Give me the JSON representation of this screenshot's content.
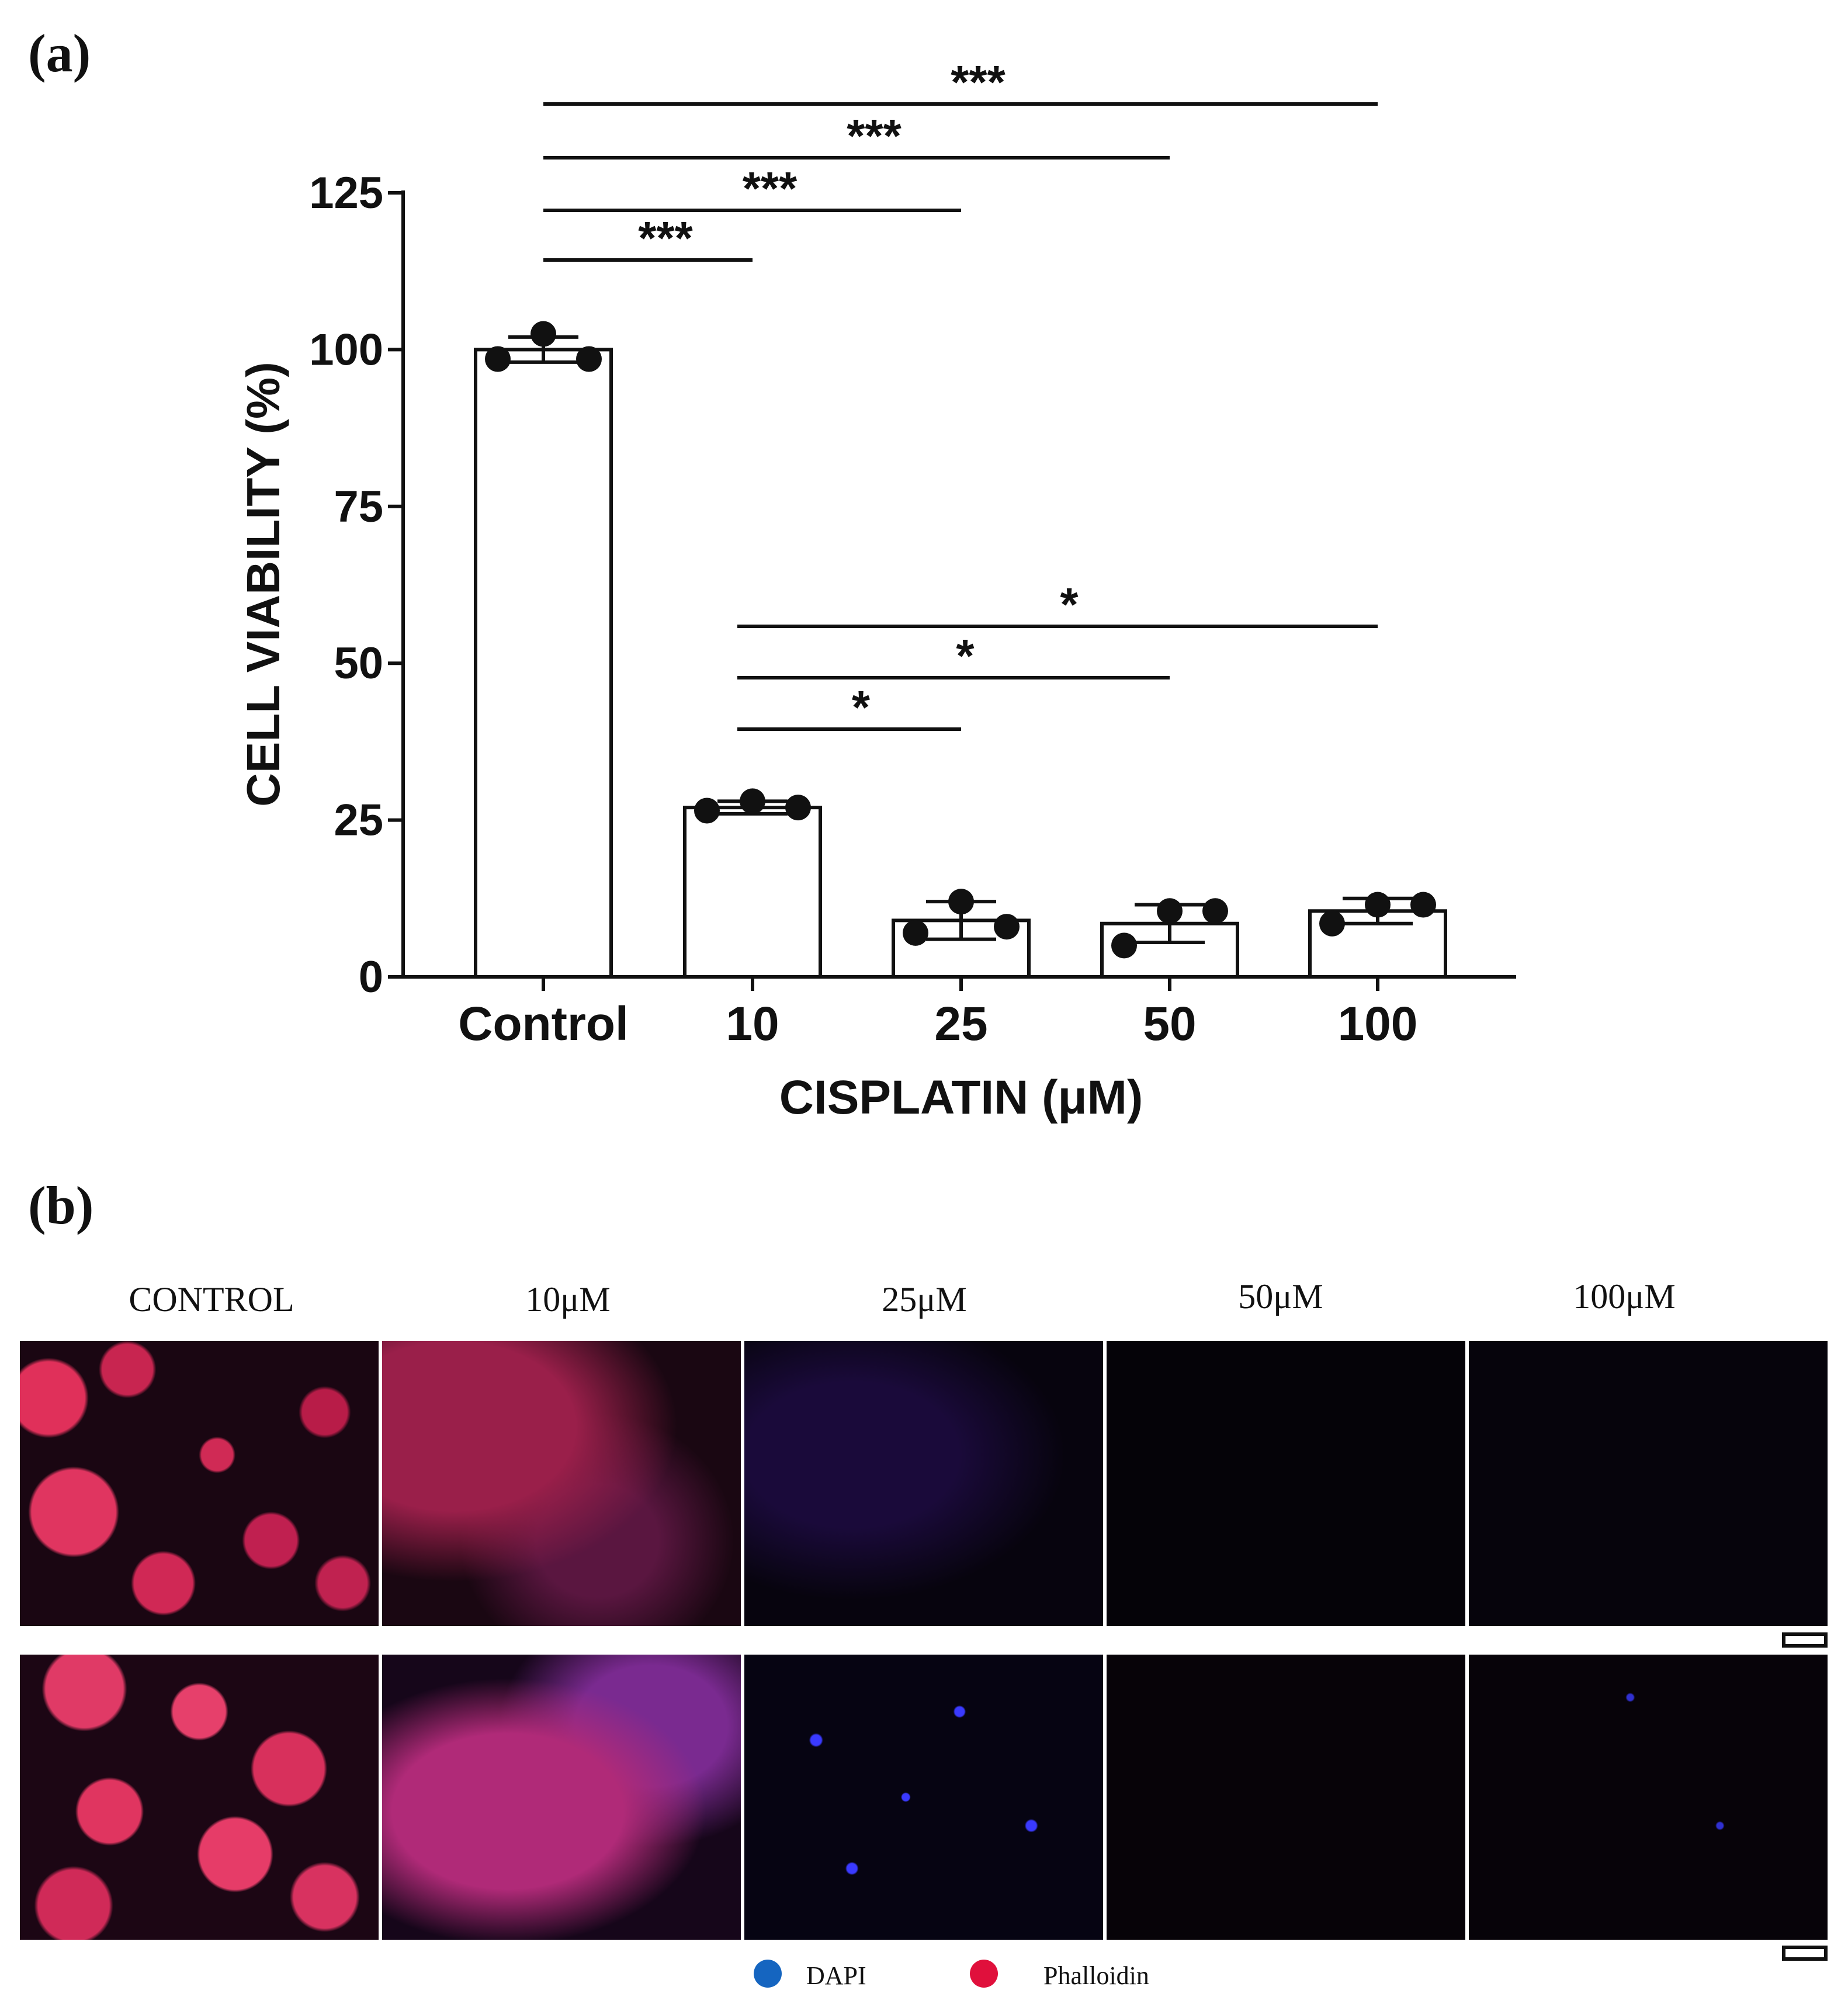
{
  "panel_a": {
    "letter": "(a)"
  },
  "panel_b": {
    "letter": "(b)",
    "columns": [
      "CONTROL",
      "10μM",
      "25μM",
      "50μM",
      "100μM"
    ],
    "legend": [
      {
        "label": "DAPI",
        "color": "#1565c0"
      },
      {
        "label": "Phalloidin",
        "color": "#e0103c"
      }
    ]
  },
  "chart_data": {
    "type": "bar",
    "title": "",
    "xlabel": "CISPLATIN (μM)",
    "ylabel": "CELL VIABILITY (%)",
    "categories": [
      "Control",
      "10",
      "25",
      "50",
      "100"
    ],
    "values": [
      100,
      27,
      9,
      8.5,
      10.5
    ],
    "error": [
      2,
      1,
      3,
      3,
      2
    ],
    "points": [
      [
        98.5,
        102.5,
        98.5
      ],
      [
        26.5,
        28,
        27
      ],
      [
        7,
        12,
        8
      ],
      [
        5,
        10.5,
        10.5
      ],
      [
        8.5,
        11.5,
        11.5
      ]
    ],
    "ylim": [
      0,
      125
    ],
    "yticks": [
      0,
      25,
      50,
      75,
      100,
      125
    ],
    "significance": [
      {
        "from": 0,
        "to": 4,
        "label": "***"
      },
      {
        "from": 0,
        "to": 3,
        "label": "***"
      },
      {
        "from": 0,
        "to": 2,
        "label": "***"
      },
      {
        "from": 0,
        "to": 1,
        "label": "***"
      },
      {
        "from": 1,
        "to": 4,
        "label": "*"
      },
      {
        "from": 1,
        "to": 3,
        "label": "*"
      },
      {
        "from": 1,
        "to": 2,
        "label": "*"
      }
    ],
    "grid": false,
    "colors": {
      "bar_fill": "#ffffff",
      "bar_stroke": "#111111",
      "point": "#111111"
    }
  }
}
